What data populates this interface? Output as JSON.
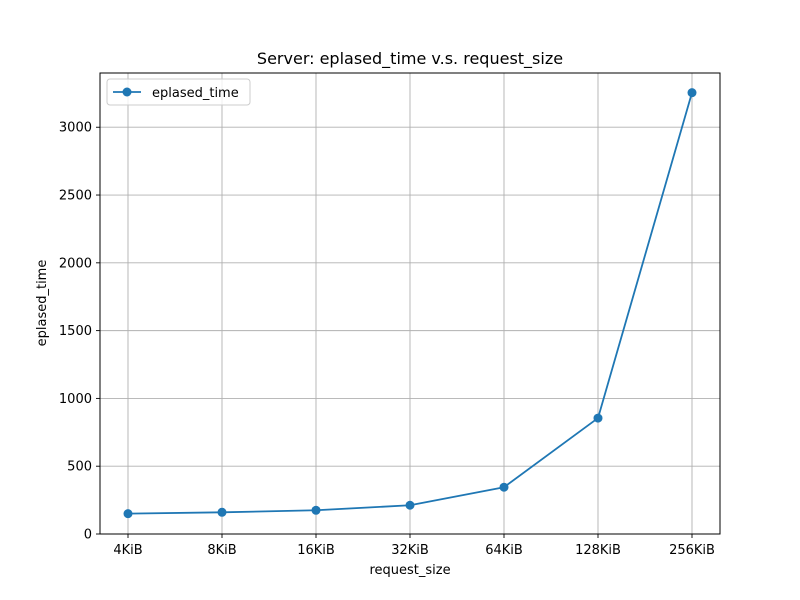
{
  "chart_data": {
    "type": "line",
    "title": "Server: eplased_time v.s. request_size",
    "xlabel": "request_size",
    "ylabel": "eplased_time",
    "categories": [
      "4KiB",
      "8KiB",
      "16KiB",
      "32KiB",
      "64KiB",
      "128KiB",
      "256KiB"
    ],
    "series": [
      {
        "name": "eplased_time",
        "values": [
          150,
          160,
          175,
          212,
          345,
          855,
          3255
        ],
        "color": "#1f77b4"
      }
    ],
    "ylim": [
      0,
      3400
    ],
    "yticks": [
      0,
      500,
      1000,
      1500,
      2000,
      2500,
      3000
    ],
    "grid": true,
    "legend_position": "top-left"
  }
}
